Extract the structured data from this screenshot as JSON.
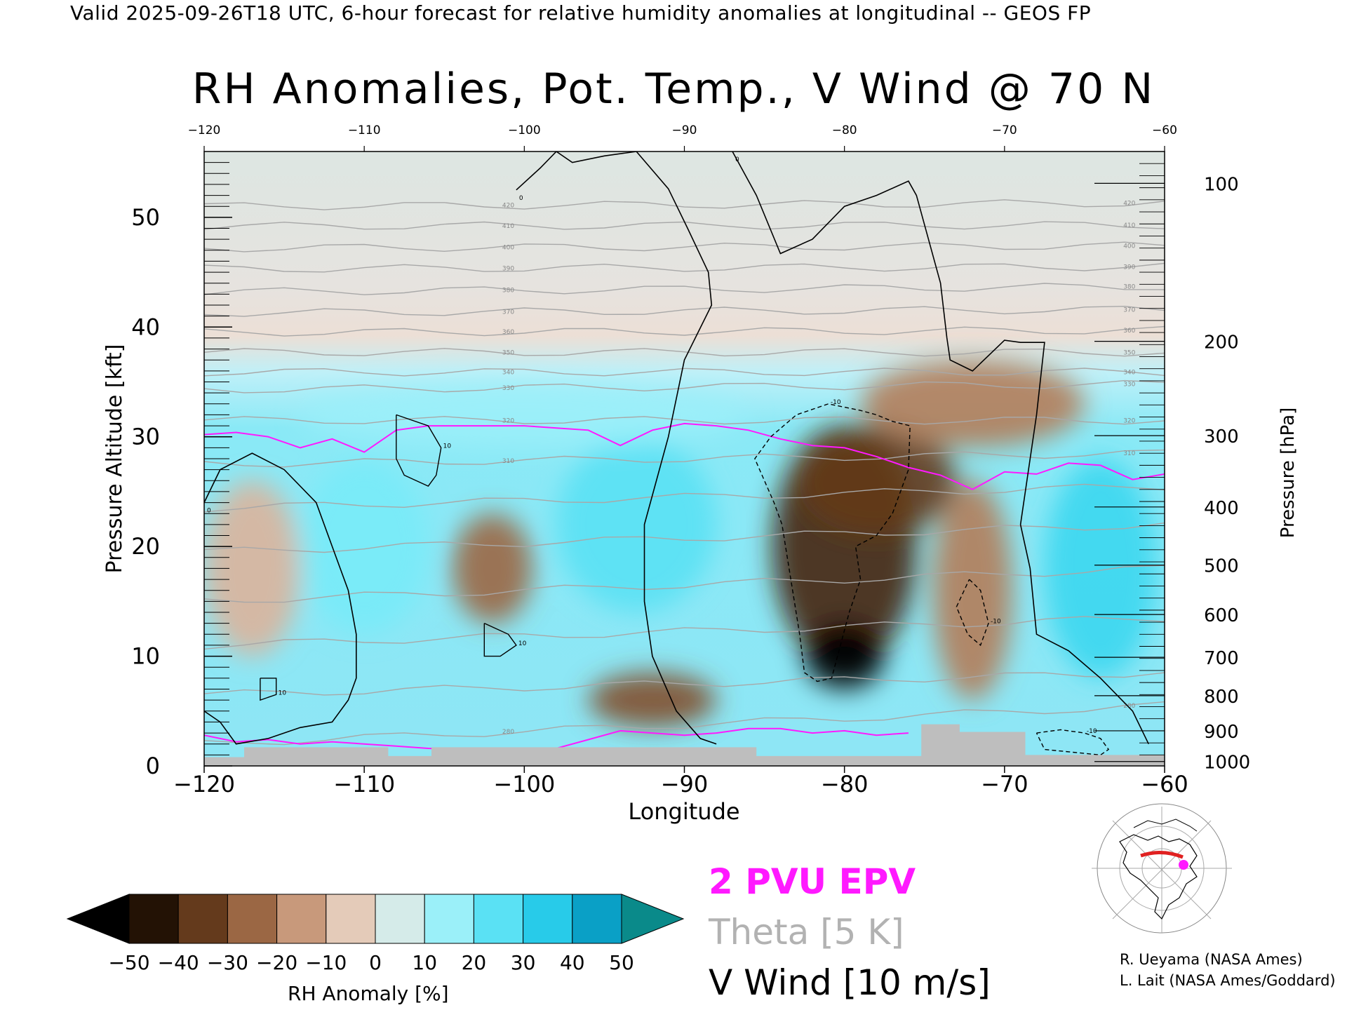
{
  "header": {
    "caption": "Valid 2025-09-26T18 UTC, 6-hour forecast for relative humidity anomalies at longitudinal -- GEOS FP",
    "title": "RH Anomalies, Pot. Temp., V Wind @ 70 N"
  },
  "legend": {
    "epv_label": "2 PVU EPV",
    "theta_label": "Theta [5 K]",
    "vwind_label": "V Wind [10 m/s]"
  },
  "colorbar": {
    "label": "RH Anomaly [%]",
    "ticks": [
      "-50",
      "-40",
      "-30",
      "-20",
      "-10",
      "0",
      "10",
      "20",
      "30",
      "40",
      "50"
    ]
  },
  "credits": {
    "line1": "R. Ueyama (NASA Ames)",
    "line2": "L. Lait (NASA Ames/Goddard)"
  },
  "colors": {
    "epv": "#ff19ff",
    "theta": "#a8a8a8",
    "vwind": "#000000",
    "terrain": "#bebebe",
    "stratosphere_bg": "#dde6e2"
  },
  "chart_data": {
    "type": "heatmap",
    "title": "RH Anomalies, Pot. Temp., V Wind @ 70 N",
    "xlabel": "Longitude",
    "ylabel": "Pressure Altitude [kft]",
    "y2label": "Pressure [hPa]",
    "xlim": [
      -120,
      -60
    ],
    "ylim": [
      0,
      56
    ],
    "x_ticks": [
      "-120",
      "-110",
      "-100",
      "-90",
      "-80",
      "-70",
      "-60"
    ],
    "x_ticks_top": [
      "-120",
      "-110",
      "-100",
      "-90",
      "-80",
      "-70",
      "-60"
    ],
    "y_ticks": [
      "0",
      "10",
      "20",
      "30",
      "40",
      "50"
    ],
    "pressure_ticks": [
      {
        "label": "100",
        "alt_kft": 53.1
      },
      {
        "label": "200",
        "alt_kft": 38.7
      },
      {
        "label": "300",
        "alt_kft": 30.1
      },
      {
        "label": "400",
        "alt_kft": 23.6
      },
      {
        "label": "500",
        "alt_kft": 18.3
      },
      {
        "label": "600",
        "alt_kft": 13.8
      },
      {
        "label": "700",
        "alt_kft": 9.9
      },
      {
        "label": "800",
        "alt_kft": 6.4
      },
      {
        "label": "900",
        "alt_kft": 3.2
      },
      {
        "label": "1000",
        "alt_kft": 0.4
      }
    ],
    "rh_anomaly_blobs": [
      {
        "lon": -80,
        "alt": 20,
        "rx": 4.5,
        "ry": 11,
        "value": -40
      },
      {
        "lon": -80,
        "alt": 10,
        "rx": 2.5,
        "ry": 3,
        "value": -50
      },
      {
        "lon": -78,
        "alt": 26,
        "rx": 5,
        "ry": 5,
        "value": -35
      },
      {
        "lon": -72,
        "alt": 33,
        "rx": 7,
        "ry": 4,
        "value": -20
      },
      {
        "lon": -102,
        "alt": 18,
        "rx": 2.5,
        "ry": 5,
        "value": -25
      },
      {
        "lon": -92,
        "alt": 6,
        "rx": 4,
        "ry": 2.5,
        "value": -30
      },
      {
        "lon": -117,
        "alt": 18,
        "rx": 3,
        "ry": 8,
        "value": -10
      },
      {
        "lon": -72,
        "alt": 16,
        "rx": 2.5,
        "ry": 10,
        "value": -20
      },
      {
        "lon": -110,
        "alt": 20,
        "rx": 4,
        "ry": 8,
        "value": 20
      },
      {
        "lon": -93,
        "alt": 22,
        "rx": 5,
        "ry": 8,
        "value": 25
      },
      {
        "lon": -64,
        "alt": 18,
        "rx": 3.5,
        "ry": 10,
        "value": 30
      },
      {
        "lon": -100,
        "alt": 32,
        "rx": 14,
        "ry": 3,
        "value": 15
      }
    ],
    "theta_levels": [
      "280",
      "310",
      "320",
      "330",
      "340",
      "350",
      "360",
      "370",
      "380",
      "390",
      "400",
      "410",
      "420"
    ],
    "theta_lines": [
      {
        "label": "280",
        "alt_start": 2.0,
        "alt_end": 5.5
      },
      {
        "label": "",
        "alt_start": 6.5,
        "alt_end": 8.5
      },
      {
        "label": "",
        "alt_start": 11,
        "alt_end": 13.5
      },
      {
        "label": "",
        "alt_start": 15,
        "alt_end": 18
      },
      {
        "label": "",
        "alt_start": 19.5,
        "alt_end": 22
      },
      {
        "label": "",
        "alt_start": 23.5,
        "alt_end": 25.5
      },
      {
        "label": "310",
        "alt_start": 27.5,
        "alt_end": 28.5
      },
      {
        "label": "320",
        "alt_start": 31.5,
        "alt_end": 31.5
      },
      {
        "label": "330",
        "alt_start": 34.3,
        "alt_end": 34.8
      },
      {
        "label": "340",
        "alt_start": 35.9,
        "alt_end": 35.9
      },
      {
        "label": "350",
        "alt_start": 37.7,
        "alt_end": 37.7
      },
      {
        "label": "360",
        "alt_start": 39.5,
        "alt_end": 39.7
      },
      {
        "label": "370",
        "alt_start": 41.3,
        "alt_end": 41.6
      },
      {
        "label": "380",
        "alt_start": 43.2,
        "alt_end": 43.7
      },
      {
        "label": "390",
        "alt_start": 45.3,
        "alt_end": 45.5
      },
      {
        "label": "400",
        "alt_start": 47.2,
        "alt_end": 47.4
      },
      {
        "label": "410",
        "alt_start": 49.2,
        "alt_end": 49.3
      },
      {
        "label": "420",
        "alt_start": 51.0,
        "alt_end": 51.3
      }
    ],
    "epv_2pvu": {
      "lon": [
        -120,
        -118,
        -116,
        -114,
        -112,
        -110,
        -108,
        -106,
        -104,
        -102,
        -100,
        -98,
        -96,
        -94,
        -92,
        -90,
        -88,
        -86,
        -84,
        -82,
        -80,
        -78,
        -76,
        -74,
        -72,
        -70,
        -68,
        -66,
        -64,
        -62,
        -60
      ],
      "alt": [
        30.2,
        30.4,
        30.0,
        29.0,
        29.8,
        28.6,
        30.6,
        31.0,
        31.0,
        31.0,
        31.0,
        30.8,
        30.6,
        29.2,
        30.6,
        31.2,
        31.0,
        30.6,
        29.8,
        29.2,
        29.0,
        28.2,
        27.2,
        26.5,
        25.2,
        26.8,
        26.6,
        27.6,
        27.4,
        26.1,
        26.6
      ]
    },
    "epv_low": {
      "lon": [
        -120,
        -118,
        -116,
        -114,
        -112,
        -110,
        -108,
        -106,
        -104,
        -102,
        -100,
        -98,
        -96,
        -94,
        -92,
        -90,
        -88,
        -86,
        -84,
        -82,
        -80,
        -78,
        -76
      ],
      "alt": [
        2.8,
        2.2,
        2.4,
        2.0,
        2.2,
        2.0,
        1.8,
        1.6,
        1.5,
        1.4,
        1.4,
        1.6,
        2.4,
        3.2,
        3.0,
        2.8,
        3.0,
        3.4,
        3.4,
        3.0,
        3.2,
        2.8,
        3.0
      ]
    },
    "vwind_zero_contours": [
      {
        "label": "0",
        "lon": [
          -100.5,
          -99,
          -98,
          -97,
          -95,
          -93,
          -91,
          -89.8,
          -88.5,
          -88.3,
          -90,
          -91,
          -92.5,
          -92.5,
          -92,
          -90.5,
          -89,
          -88
        ],
        "alt": [
          52.5,
          54.5,
          56,
          55,
          55.6,
          56,
          52.6,
          49,
          45,
          42,
          37,
          30,
          22,
          15,
          10,
          5,
          2.5,
          2
        ]
      },
      {
        "label": "0",
        "lon": [
          -87,
          -85.5,
          -84,
          -82,
          -80,
          -78,
          -76,
          -75.5,
          -74,
          -73.6,
          -73.4,
          -72,
          -70,
          -69,
          -67.5,
          -68,
          -69,
          -68.4,
          -68,
          -66,
          -64,
          -62,
          -61
        ],
        "alt": [
          56,
          52,
          46.7,
          48,
          51,
          52,
          53.3,
          52,
          44,
          39,
          37,
          36,
          38.8,
          38.6,
          38.6,
          32,
          22,
          18,
          12,
          10.5,
          8,
          5,
          2
        ]
      },
      {
        "label": "0",
        "lon": [
          -120,
          -119,
          -117,
          -115,
          -113,
          -112,
          -111,
          -110.5,
          -110.5,
          -111,
          -112,
          -114,
          -116,
          -118,
          -119,
          -120
        ],
        "alt": [
          24,
          27,
          28.5,
          27,
          24,
          20,
          16,
          12,
          8,
          6,
          4,
          3.5,
          2.5,
          2,
          4,
          5
        ]
      }
    ],
    "vwind_ten_contours": [
      {
        "label": "-10",
        "lon": [
          -84.6,
          -83,
          -81,
          -79,
          -78,
          -77,
          -75.9,
          -76,
          -77,
          -78,
          -79.3,
          -79,
          -79.7,
          -80.8,
          -81.7,
          -82.5,
          -82.8,
          -83.9,
          -84.4,
          -85.6,
          -84.6
        ],
        "alt": [
          30,
          32,
          33,
          32.4,
          32,
          31.4,
          31,
          27,
          23,
          21,
          20,
          17,
          14,
          8,
          7.7,
          8.5,
          12,
          22,
          24,
          28,
          30
        ]
      },
      {
        "label": "-10",
        "lon": [
          -68,
          -66.5,
          -65,
          -64,
          -63.5,
          -64,
          -67.5,
          -68
        ],
        "alt": [
          3,
          3.3,
          3,
          2.5,
          1.5,
          1,
          1.5,
          3
        ]
      },
      {
        "label": "-10",
        "lon": [
          -72.2,
          -71.5,
          -71,
          -71.5,
          -72.3,
          -73,
          -72.2
        ],
        "alt": [
          17,
          16,
          13,
          11,
          12,
          14.5,
          17
        ]
      },
      {
        "label": "10",
        "lon": [
          -108,
          -106,
          -105.2,
          -105.5,
          -106,
          -107.5,
          -108,
          -108
        ],
        "alt": [
          32,
          31,
          29,
          26.5,
          25.5,
          26.5,
          28,
          32
        ]
      },
      {
        "label": "10",
        "lon": [
          -102.5,
          -101,
          -100.5,
          -101.5,
          -102.5,
          -102.5
        ],
        "alt": [
          13,
          12,
          11,
          10,
          10,
          13
        ]
      },
      {
        "label": "10",
        "lon": [
          -116.5,
          -115.5,
          -115.5,
          -116.5,
          -116.5
        ],
        "alt": [
          8,
          8,
          6.5,
          6,
          8
        ]
      }
    ],
    "terrain_kft": {
      "lon": [
        -120,
        -117.5,
        -117.5,
        -108.5,
        -108.5,
        -105.8,
        -105.8,
        -85.5,
        -85.5,
        -75.2,
        -75.2,
        -72.8,
        -72.8,
        -68.7,
        -68.7,
        -60
      ],
      "alt": [
        0.8,
        0.8,
        1.7,
        1.7,
        0.9,
        0.9,
        1.7,
        1.7,
        0.9,
        0.9,
        3.8,
        3.8,
        3.1,
        3.1,
        1.0,
        1.0
      ]
    }
  }
}
